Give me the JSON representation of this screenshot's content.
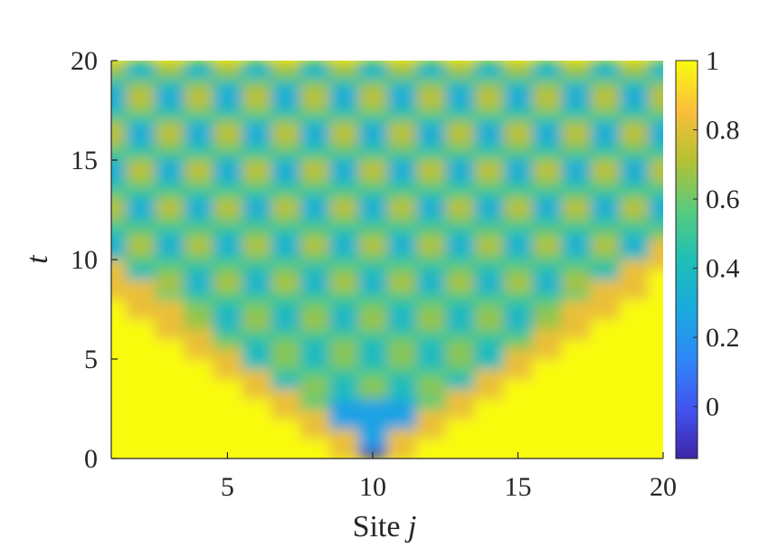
{
  "chart_data": {
    "type": "heatmap",
    "title": "",
    "xlabel": "Site",
    "xlabel_var": "j",
    "ylabel": "t",
    "xlim": [
      1,
      20
    ],
    "ylim": [
      0,
      20
    ],
    "xticks": [
      5,
      10,
      15,
      20
    ],
    "yticks": [
      0,
      5,
      10,
      15,
      20
    ],
    "colorbar": {
      "colormap": "parula",
      "range": [
        -0.15,
        1.0
      ],
      "ticks": [
        "0",
        "0.2",
        "0.4",
        "0.6",
        "0.8",
        "1"
      ],
      "tick_values": [
        0,
        0.2,
        0.4,
        0.6,
        0.8,
        1
      ]
    },
    "description_of_values": {
      "center_site": 10,
      "initial_minimum_value": -0.1,
      "outside_light_cone_value": 1.0,
      "inside_light_cone_typical_range": [
        0.3,
        0.7
      ],
      "light_cone_edge_sites_at_t20": [
        1,
        20
      ]
    },
    "colors": {
      "parula_low": "#3e26a8",
      "parula_mid": "#23bbb9",
      "parula_high": "#f9fb0e",
      "axis": "#262626"
    }
  }
}
